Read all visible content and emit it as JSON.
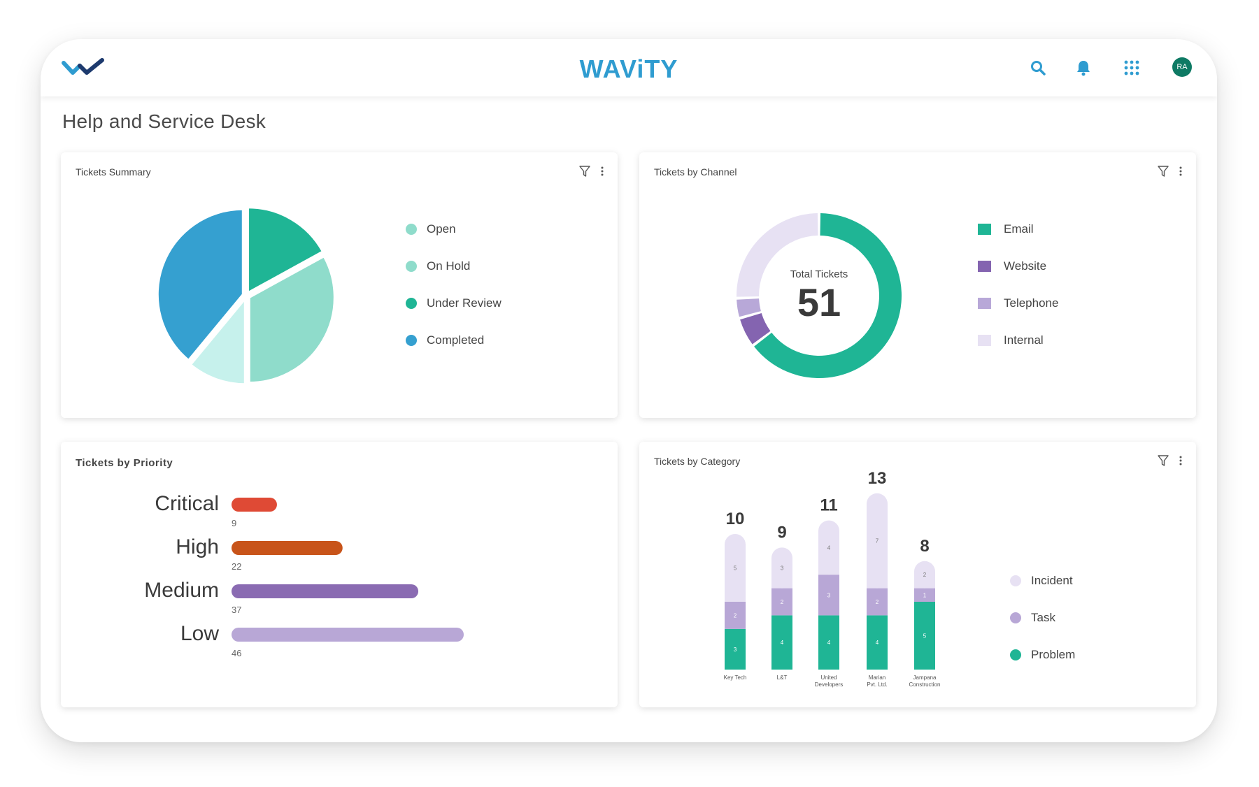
{
  "app": {
    "brand": "WAViTY",
    "user_initials": "RA"
  },
  "page": {
    "title": "Help and Service Desk"
  },
  "icons": {
    "logo": "wavity-logo-icon",
    "search": "search-icon",
    "bell": "bell-icon",
    "apps": "apps-grid-icon",
    "filter": "filter-icon",
    "more": "more-vertical-icon"
  },
  "colors": {
    "accent": "#2f9cd0",
    "teal": "#1fb595",
    "avatar": "#0e7a64"
  },
  "summary": {
    "title": "Tickets Summary",
    "legend": [
      {
        "label": "Open",
        "color": "#8fdccb"
      },
      {
        "label": "On Hold",
        "color": "#8fdccb"
      },
      {
        "label": "Under Review",
        "color": "#1fb595"
      },
      {
        "label": "Completed",
        "color": "#35a0d0"
      }
    ]
  },
  "channel": {
    "title": "Tickets by Channel",
    "center_label": "Total Tickets",
    "total": "51",
    "legend": [
      {
        "label": "Email",
        "color": "#1fb595"
      },
      {
        "label": "Website",
        "color": "#8464b0"
      },
      {
        "label": "Telephone",
        "color": "#b8a8d8"
      },
      {
        "label": "Internal",
        "color": "#e7e1f3"
      }
    ]
  },
  "priority": {
    "title": "Tickets by Priority",
    "items": [
      {
        "label": "Critical",
        "value": "9",
        "color": "#df4a35"
      },
      {
        "label": "High",
        "value": "22",
        "color": "#c8541a"
      },
      {
        "label": "Medium",
        "value": "37",
        "color": "#8a6bb2"
      },
      {
        "label": "Low",
        "value": "46",
        "color": "#b8a7d6"
      }
    ]
  },
  "category": {
    "title": "Tickets by Category",
    "legend": [
      {
        "label": "Incident",
        "color": "#e7e1f3"
      },
      {
        "label": "Task",
        "color": "#b8a7d6"
      },
      {
        "label": "Problem",
        "color": "#1fb595"
      }
    ]
  },
  "chart_data": [
    {
      "type": "pie",
      "title": "Tickets Summary",
      "categories": [
        "Open",
        "On Hold",
        "Under Review",
        "Completed"
      ],
      "values": [
        11,
        33,
        17,
        39
      ],
      "unit": "percent (estimated from slice size)"
    },
    {
      "type": "pie",
      "variant": "donut",
      "title": "Tickets by Channel",
      "center_text": "Total Tickets 51",
      "categories": [
        "Email",
        "Website",
        "Telephone",
        "Internal"
      ],
      "values": [
        33,
        3,
        2,
        13
      ]
    },
    {
      "type": "bar",
      "orientation": "horizontal",
      "title": "Tickets by Priority",
      "categories": [
        "Critical",
        "High",
        "Medium",
        "Low"
      ],
      "values": [
        9,
        22,
        37,
        46
      ]
    },
    {
      "type": "bar",
      "stacked": true,
      "title": "Tickets by Category",
      "categories": [
        "Key Tech",
        "L&T",
        "United Developers",
        "Marian Pvt. Ltd.",
        "Jampana Construction"
      ],
      "series": [
        {
          "name": "Problem",
          "values": [
            3,
            4,
            4,
            4,
            5
          ]
        },
        {
          "name": "Task",
          "values": [
            2,
            2,
            3,
            2,
            1
          ]
        },
        {
          "name": "Incident",
          "values": [
            5,
            3,
            4,
            7,
            2
          ]
        }
      ],
      "totals": [
        10,
        9,
        11,
        13,
        8
      ]
    }
  ]
}
